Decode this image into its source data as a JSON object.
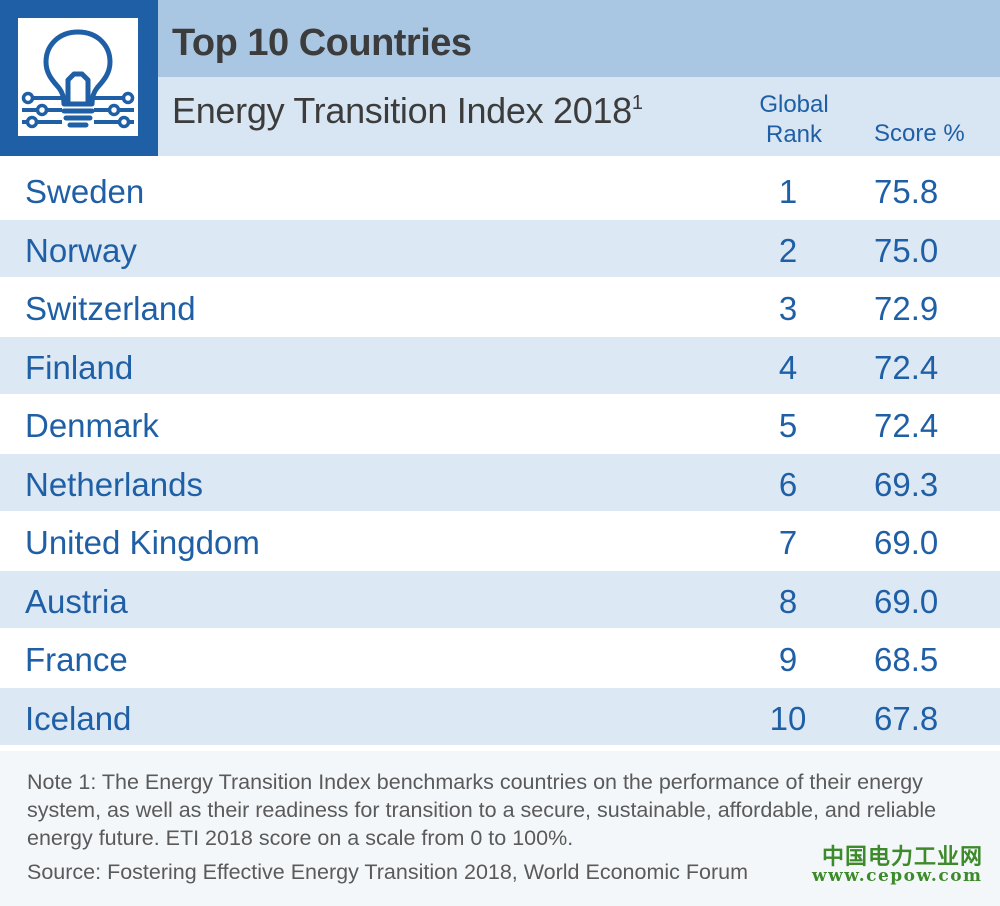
{
  "header": {
    "title": "Top 10 Countries",
    "subtitle": "Energy Transition Index 2018",
    "subtitle_superscript": "1",
    "rank_header": "Global Rank",
    "score_header": "Score %"
  },
  "logo": {
    "icon": "lightbulb-circuit-icon",
    "colors": {
      "frame": "#1f5fa6",
      "bg": "#ffffff"
    }
  },
  "chart_data": {
    "type": "table",
    "title": "Top 10 Countries",
    "subtitle": "Energy Transition Index 2018",
    "columns": [
      "",
      "Global Rank",
      "Score %"
    ],
    "rows": [
      {
        "country": "Sweden",
        "rank": "1",
        "score": "75.8"
      },
      {
        "country": "Norway",
        "rank": "2",
        "score": "75.0"
      },
      {
        "country": "Switzerland",
        "rank": "3",
        "score": "72.9"
      },
      {
        "country": "Finland",
        "rank": "4",
        "score": "72.4"
      },
      {
        "country": "Denmark",
        "rank": "5",
        "score": "72.4"
      },
      {
        "country": "Netherlands",
        "rank": "6",
        "score": "69.3"
      },
      {
        "country": "United Kingdom",
        "rank": "7",
        "score": "69.0"
      },
      {
        "country": "Austria",
        "rank": "8",
        "score": "69.0"
      },
      {
        "country": "France",
        "rank": "9",
        "score": "68.5"
      },
      {
        "country": "Iceland",
        "rank": "10",
        "score": "67.8"
      }
    ]
  },
  "footer": {
    "note": "Note 1: The Energy Transition Index benchmarks countries on the performance of their energy system, as well as their readiness for transition to a secure, sustainable, affordable, and reliable energy future. ETI 2018 score on a scale from 0 to 100%.",
    "source": "Source: Fostering Effective Energy Transition 2018, World Economic Forum"
  },
  "watermark": {
    "name": "中国电力工业网",
    "url": "www.cepow.com",
    "color": "#3d8a2a"
  },
  "colors": {
    "accent": "#1f5fa6",
    "title_band": "#a9c6e2",
    "subtitle_band": "#d8e5f2",
    "row_alt": "#dce8f4",
    "text_dark": "#3c3c3c"
  }
}
